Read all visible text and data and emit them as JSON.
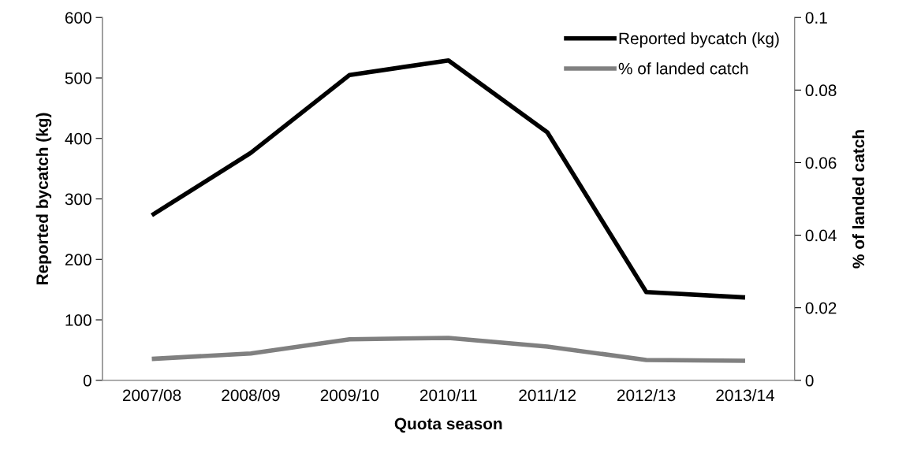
{
  "chart_data": {
    "type": "line",
    "xlabel": "Quota season",
    "ylabel": "Reported bycatch (kg)",
    "y2label": "% of landed catch",
    "categories": [
      "2007/08",
      "2008/09",
      "2009/10",
      "2010/11",
      "2011/12",
      "2012/13",
      "2013/14"
    ],
    "series": [
      {
        "name": "Reported bycatch (kg)",
        "color": "#000000",
        "values": [
          273,
          376,
          505,
          529,
          410,
          146,
          137
        ]
      },
      {
        "name": "% of landed catch",
        "color": "#808080",
        "axis": "y2",
        "values": [
          0.0059,
          0.0074,
          0.0113,
          0.0117,
          0.0093,
          0.0056,
          0.0054
        ]
      }
    ],
    "ylim": [
      0,
      600
    ],
    "yticks": [
      0,
      100,
      200,
      300,
      400,
      500,
      600
    ],
    "y2lim": [
      0,
      0.1
    ],
    "y2ticks": [
      0,
      0.02,
      0.04,
      0.06,
      0.08,
      0.1
    ],
    "grid": false,
    "legend": "top right",
    "marker": "none",
    "line_style": "solid"
  }
}
